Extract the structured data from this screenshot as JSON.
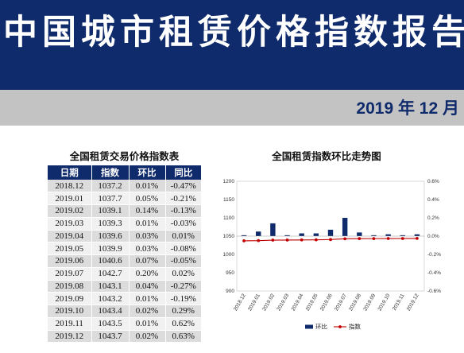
{
  "header": {
    "title": "中国城市租赁价格指数报告",
    "date": "2019 年 12 月"
  },
  "table": {
    "title": "全国租赁交易价格指数表",
    "columns": [
      "日期",
      "指数",
      "环比",
      "同比"
    ],
    "rows": [
      [
        "2018.12",
        "1037.2",
        "0.01%",
        "-0.47%"
      ],
      [
        "2019.01",
        "1037.7",
        "0.05%",
        "-0.21%"
      ],
      [
        "2019.02",
        "1039.1",
        "0.14%",
        "-0.13%"
      ],
      [
        "2019.03",
        "1039.3",
        "0.01%",
        "-0.03%"
      ],
      [
        "2019.04",
        "1039.6",
        "0.03%",
        "0.01%"
      ],
      [
        "2019.05",
        "1039.9",
        "0.03%",
        "-0.08%"
      ],
      [
        "2019.06",
        "1040.6",
        "0.07%",
        "-0.05%"
      ],
      [
        "2019.07",
        "1042.7",
        "0.20%",
        "0.02%"
      ],
      [
        "2019.08",
        "1043.1",
        "0.04%",
        "-0.27%"
      ],
      [
        "2019.09",
        "1043.2",
        "0.01%",
        "-0.19%"
      ],
      [
        "2019.10",
        "1043.4",
        "0.02%",
        "0.29%"
      ],
      [
        "2019.11",
        "1043.5",
        "0.01%",
        "0.62%"
      ],
      [
        "2019.12",
        "1043.7",
        "0.02%",
        "0.63%"
      ]
    ]
  },
  "chart_data": {
    "type": "bar",
    "title": "全国租赁指数环比走势图",
    "categories": [
      "2018.12",
      "2019.01",
      "2019.02",
      "2019.03",
      "2019.04",
      "2019.05",
      "2019.06",
      "2019.07",
      "2019.08",
      "2019.09",
      "2019.10",
      "2019.11",
      "2019.12"
    ],
    "series": [
      {
        "name": "环比",
        "kind": "bar",
        "axis": "right",
        "color": "#0f2b6b",
        "values": [
          0.01,
          0.05,
          0.14,
          0.01,
          0.03,
          0.03,
          0.07,
          0.2,
          0.04,
          0.01,
          0.02,
          0.01,
          0.02
        ]
      },
      {
        "name": "指数",
        "kind": "line",
        "axis": "left",
        "color": "#c00000",
        "values": [
          1037.2,
          1037.7,
          1039.1,
          1039.3,
          1039.6,
          1039.9,
          1040.6,
          1042.7,
          1043.1,
          1043.2,
          1043.4,
          1043.5,
          1043.7
        ]
      }
    ],
    "left_axis": {
      "min": 900,
      "max": 1200,
      "step": 50,
      "ticks": [
        "900",
        "950",
        "1000",
        "1050",
        "1100",
        "1150",
        "1200"
      ]
    },
    "right_axis": {
      "min": -0.6,
      "max": 0.6,
      "step": 0.2,
      "ticks": [
        "-0.6%",
        "-0.4%",
        "-0.2%",
        "0.0%",
        "0.2%",
        "0.4%",
        "0.6%"
      ]
    },
    "grid": false,
    "legend": "bottom"
  }
}
